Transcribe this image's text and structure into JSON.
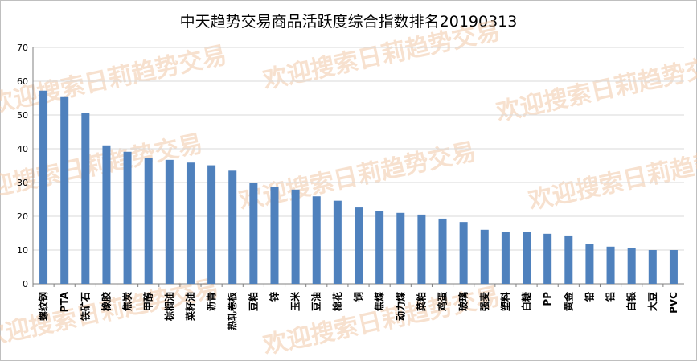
{
  "chart_data": {
    "type": "bar",
    "title": "中天趋势交易商品活跃度综合指数排名20190313",
    "ylim": [
      0,
      70
    ],
    "yticks": [
      0,
      10,
      20,
      30,
      40,
      50,
      60,
      70
    ],
    "grid": true,
    "legend": "none",
    "bar_color": "#4f81bd",
    "categories": [
      "螺纹钢",
      "PTA",
      "铁矿石",
      "橡胶",
      "焦炭",
      "甲醇",
      "棕榈油",
      "菜籽油",
      "沥青",
      "热轧卷板",
      "豆粕",
      "锌",
      "玉米",
      "豆油",
      "棉花",
      "铜",
      "焦煤",
      "动力煤",
      "菜粕",
      "鸡蛋",
      "玻璃",
      "强麦",
      "塑料",
      "白糖",
      "PP",
      "黄金",
      "铅",
      "铝",
      "白银",
      "大豆",
      "PVC"
    ],
    "values": [
      57.2,
      55.3,
      50.6,
      41.0,
      39.1,
      37.3,
      36.7,
      35.9,
      35.1,
      33.5,
      30.0,
      28.8,
      27.9,
      25.9,
      24.6,
      22.6,
      21.6,
      21.0,
      20.5,
      19.3,
      18.3,
      16.0,
      15.4,
      15.4,
      14.8,
      14.3,
      11.7,
      11.0,
      10.5,
      10.0,
      10.0
    ]
  },
  "watermark": {
    "text": "欢迎搜索日莉趋势交易",
    "color": "#f2c9a8"
  }
}
